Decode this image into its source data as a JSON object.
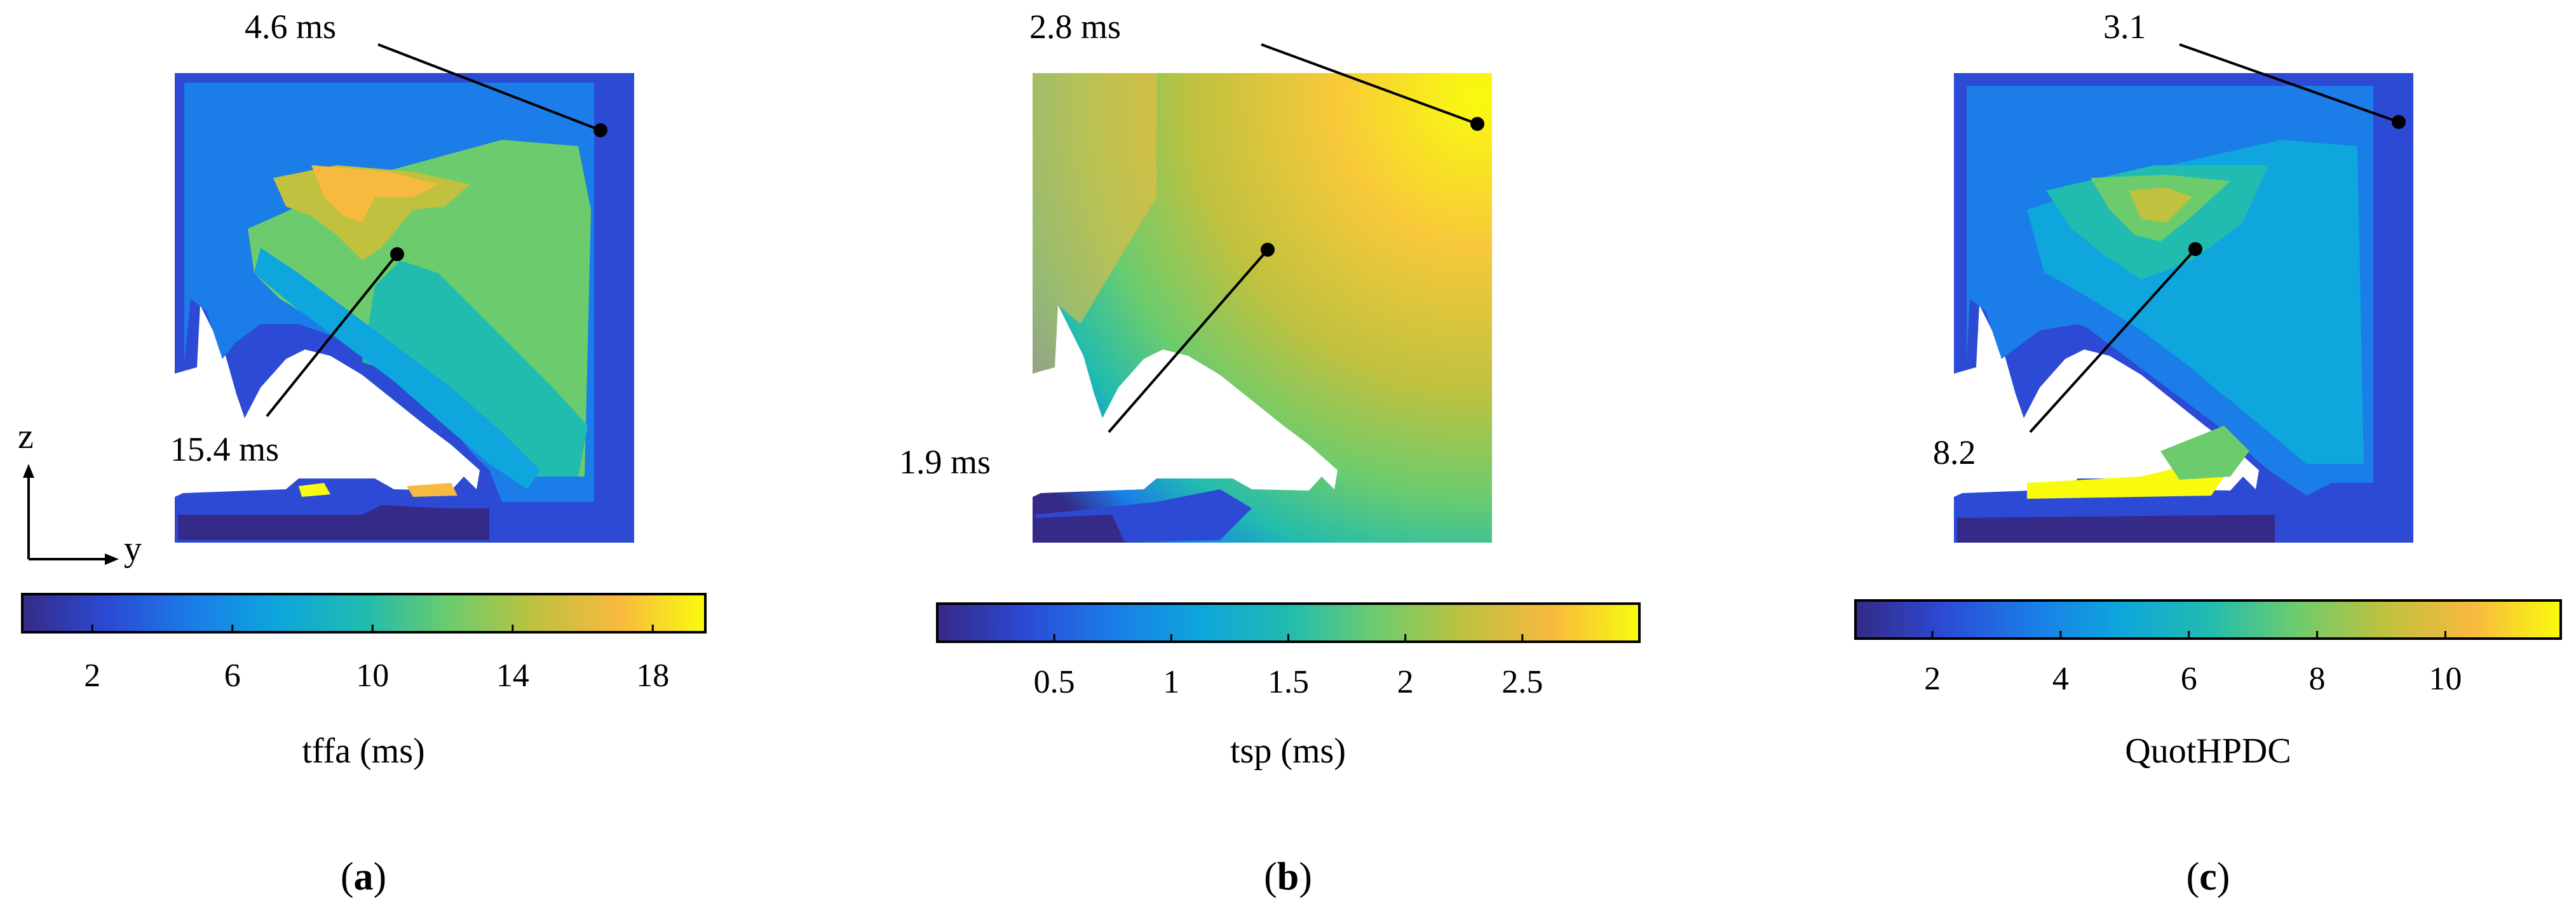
{
  "figure": {
    "panels": [
      {
        "id": "a",
        "label_prefix": "(",
        "label_letter": "a",
        "label_suffix": ")",
        "colorbar_title": "tffa (ms)",
        "annotations": [
          "4.6 ms",
          "15.4 ms"
        ]
      },
      {
        "id": "b",
        "label_prefix": "(",
        "label_letter": "b",
        "label_suffix": ")",
        "colorbar_title": "tsp (ms)",
        "annotations": [
          "2.8 ms",
          "1.9 ms"
        ]
      },
      {
        "id": "c",
        "label_prefix": "(",
        "label_letter": "c",
        "label_suffix": ")",
        "colorbar_title": "QuotHPDC",
        "annotations": [
          "3.1",
          "8.2"
        ]
      }
    ],
    "axes": {
      "vertical": "z",
      "horizontal": "y"
    }
  },
  "chart_data": [
    {
      "type": "heatmap",
      "title": "",
      "colorbar_label": "tffa (ms)",
      "colormap": "parula",
      "value_range": [
        0,
        19.5
      ],
      "colorbar_ticks": [
        "2",
        "6",
        "10",
        "14",
        "18"
      ],
      "colorbar_tick_values": [
        2,
        6,
        10,
        14,
        18
      ],
      "annotated_points": [
        {
          "label": "4.6 ms",
          "value": 4.6
        },
        {
          "label": "15.4 ms",
          "value": 15.4
        }
      ]
    },
    {
      "type": "heatmap",
      "title": "",
      "colorbar_label": "tsp (ms)",
      "colormap": "parula",
      "value_range": [
        0,
        3.0
      ],
      "colorbar_ticks": [
        "0.5",
        "1",
        "1.5",
        "2",
        "2.5"
      ],
      "colorbar_tick_values": [
        0.5,
        1,
        1.5,
        2,
        2.5
      ],
      "annotated_points": [
        {
          "label": "2.8 ms",
          "value": 2.8
        },
        {
          "label": "1.9 ms",
          "value": 1.9
        }
      ]
    },
    {
      "type": "heatmap",
      "title": "",
      "colorbar_label": "QuotHPDC",
      "colormap": "parula",
      "value_range": [
        0.8,
        11.8
      ],
      "colorbar_ticks": [
        "2",
        "4",
        "6",
        "8",
        "10"
      ],
      "colorbar_tick_values": [
        2,
        4,
        6,
        8,
        10
      ],
      "annotated_points": [
        {
          "label": "3.1",
          "value": 3.1
        },
        {
          "label": "8.2",
          "value": 8.2
        }
      ]
    }
  ],
  "colors": {
    "parula": [
      "#352a87",
      "#2c4ad4",
      "#1a7de8",
      "#0ea6dc",
      "#21bbb0",
      "#6ccc6d",
      "#bfc13f",
      "#f8b93f",
      "#f9fb0e"
    ],
    "background": "#ffffff",
    "stroke": "#000000"
  }
}
